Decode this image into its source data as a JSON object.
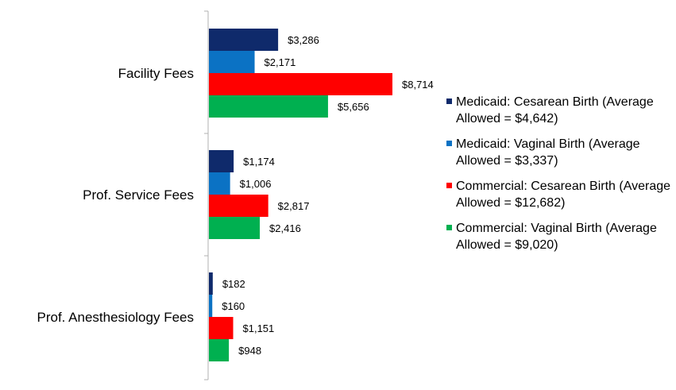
{
  "chart_data": {
    "type": "bar",
    "orientation": "horizontal",
    "categories": [
      "Facility Fees",
      "Prof. Service Fees",
      "Prof. Anesthesiology Fees"
    ],
    "series": [
      {
        "name": "Medicaid: Cesarean Birth (Average Allowed = $4,642)",
        "color": "#0f2a6b",
        "values": [
          3286,
          1174,
          182
        ],
        "labels": [
          "$3,286",
          "$1,174",
          "$182"
        ]
      },
      {
        "name": "Medicaid: Vaginal Birth (Average Allowed = $3,337)",
        "color": "#0b72c4",
        "values": [
          2171,
          1006,
          160
        ],
        "labels": [
          "$2,171",
          "$1,006",
          "$160"
        ]
      },
      {
        "name": "Commercial: Cesarean Birth (Average Allowed = $12,682)",
        "color": "#ff0000",
        "values": [
          8714,
          2817,
          1151
        ],
        "labels": [
          "$8,714",
          "$2,817",
          "$1,151"
        ]
      },
      {
        "name": "Commercial: Vaginal Birth (Average Allowed = $9,020)",
        "color": "#00b050",
        "values": [
          5656,
          2416,
          948
        ],
        "labels": [
          "$5,656",
          "$2,416",
          "$948"
        ]
      }
    ],
    "xlim": [
      0,
      10000
    ],
    "legend_position": "right",
    "grid": false
  }
}
